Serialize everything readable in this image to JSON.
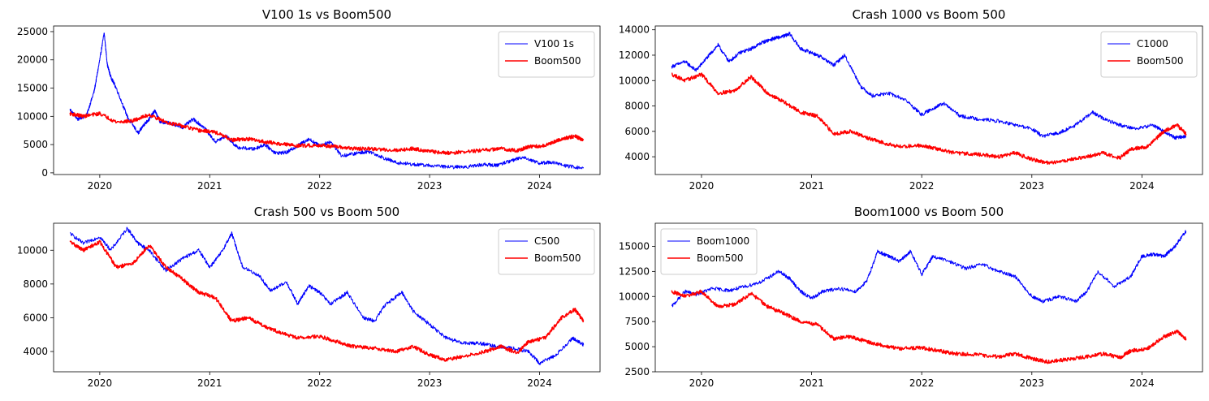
{
  "figure": {
    "background": "#ffffff"
  },
  "chart_data": [
    {
      "type": "line",
      "title": "V100 1s vs Boom500",
      "xlabel": "",
      "ylabel": "",
      "xlim": [
        2019.58,
        2024.55
      ],
      "ylim": [
        -300,
        26000
      ],
      "xticks": [
        2020,
        2021,
        2022,
        2023,
        2024
      ],
      "yticks": [
        0,
        5000,
        10000,
        15000,
        20000,
        25000
      ],
      "grid": false,
      "legend": "top-right",
      "series": [
        {
          "name": "V100 1s",
          "color": "#0000ff",
          "x": [
            2019.73,
            2019.8,
            2019.88,
            2019.95,
            2020.0,
            2020.04,
            2020.07,
            2020.1,
            2020.15,
            2020.25,
            2020.35,
            2020.4,
            2020.45,
            2020.5,
            2020.55,
            2020.65,
            2020.75,
            2020.85,
            2020.95,
            2021.05,
            2021.15,
            2021.25,
            2021.4,
            2021.5,
            2021.6,
            2021.7,
            2021.8,
            2021.9,
            2022.0,
            2022.1,
            2022.2,
            2022.35,
            2022.45,
            2022.6,
            2022.7,
            2022.85,
            2023.0,
            2023.2,
            2023.35,
            2023.5,
            2023.6,
            2023.75,
            2023.85,
            2024.0,
            2024.1,
            2024.25,
            2024.4
          ],
          "y": [
            11200,
            9500,
            10200,
            14500,
            20000,
            24800,
            19000,
            17000,
            15000,
            10000,
            7000,
            8500,
            9500,
            11000,
            9000,
            8800,
            8000,
            9500,
            8000,
            5500,
            6500,
            4500,
            4200,
            5000,
            3500,
            3600,
            4800,
            6000,
            4800,
            5500,
            3000,
            3500,
            3800,
            2500,
            1800,
            1500,
            1300,
            1000,
            1100,
            1500,
            1300,
            2200,
            2800,
            1700,
            1900,
            1200,
            800
          ]
        },
        {
          "name": "Boom500",
          "color": "#ff0000",
          "x": [
            2019.73,
            2019.85,
            2020.0,
            2020.15,
            2020.3,
            2020.45,
            2020.6,
            2020.75,
            2020.9,
            2021.05,
            2021.2,
            2021.35,
            2021.5,
            2021.65,
            2021.8,
            2022.0,
            2022.15,
            2022.3,
            2022.5,
            2022.7,
            2022.85,
            2023.0,
            2023.15,
            2023.3,
            2023.5,
            2023.65,
            2023.8,
            2023.9,
            2024.05,
            2024.2,
            2024.32,
            2024.4
          ],
          "y": [
            10500,
            10000,
            10500,
            9000,
            9200,
            10300,
            9000,
            8300,
            7500,
            7200,
            5800,
            6000,
            5500,
            5100,
            4800,
            4900,
            4600,
            4300,
            4200,
            4000,
            4300,
            3800,
            3500,
            3700,
            4000,
            4300,
            3900,
            4600,
            4800,
            6000,
            6500,
            5800
          ]
        }
      ]
    },
    {
      "type": "line",
      "title": "Crash 1000 vs Boom 500",
      "xlabel": "",
      "ylabel": "",
      "xlim": [
        2019.58,
        2024.55
      ],
      "ylim": [
        2600,
        14300
      ],
      "xticks": [
        2020,
        2021,
        2022,
        2023,
        2024
      ],
      "yticks": [
        4000,
        6000,
        8000,
        10000,
        12000,
        14000
      ],
      "grid": false,
      "legend": "top-right",
      "series": [
        {
          "name": "C1000",
          "color": "#0000ff",
          "x": [
            2019.73,
            2019.85,
            2019.95,
            2020.05,
            2020.15,
            2020.25,
            2020.35,
            2020.45,
            2020.55,
            2020.65,
            2020.75,
            2020.8,
            2020.9,
            2021.0,
            2021.1,
            2021.2,
            2021.3,
            2021.45,
            2021.55,
            2021.7,
            2021.85,
            2022.0,
            2022.1,
            2022.2,
            2022.35,
            2022.5,
            2022.7,
            2022.85,
            2023.0,
            2023.1,
            2023.25,
            2023.4,
            2023.55,
            2023.65,
            2023.8,
            2023.95,
            2024.1,
            2024.2,
            2024.3,
            2024.4
          ],
          "y": [
            11100,
            11500,
            10800,
            11800,
            12800,
            11500,
            12200,
            12500,
            13000,
            13300,
            13500,
            13700,
            12500,
            12200,
            11800,
            11200,
            12000,
            9500,
            8800,
            9000,
            8500,
            7300,
            7800,
            8200,
            7200,
            7000,
            6800,
            6500,
            6200,
            5600,
            5900,
            6500,
            7500,
            7000,
            6500,
            6200,
            6500,
            6000,
            5500,
            5600
          ]
        },
        {
          "name": "Boom500",
          "color": "#ff0000",
          "x": [
            2019.73,
            2019.85,
            2020.0,
            2020.15,
            2020.3,
            2020.45,
            2020.6,
            2020.75,
            2020.9,
            2021.05,
            2021.2,
            2021.35,
            2021.5,
            2021.65,
            2021.8,
            2022.0,
            2022.15,
            2022.3,
            2022.5,
            2022.7,
            2022.85,
            2023.0,
            2023.15,
            2023.3,
            2023.5,
            2023.65,
            2023.8,
            2023.9,
            2024.05,
            2024.2,
            2024.32,
            2024.4
          ],
          "y": [
            10500,
            10000,
            10500,
            9000,
            9200,
            10300,
            9000,
            8300,
            7500,
            7200,
            5800,
            6000,
            5500,
            5100,
            4800,
            4900,
            4600,
            4300,
            4200,
            4000,
            4300,
            3800,
            3500,
            3700,
            4000,
            4300,
            3900,
            4600,
            4800,
            6000,
            6500,
            5800
          ]
        }
      ]
    },
    {
      "type": "line",
      "title": "Crash 500 vs Boom 500",
      "xlabel": "",
      "ylabel": "",
      "xlim": [
        2019.58,
        2024.55
      ],
      "ylim": [
        2800,
        11600
      ],
      "xticks": [
        2020,
        2021,
        2022,
        2023,
        2024
      ],
      "yticks": [
        4000,
        6000,
        8000,
        10000
      ],
      "grid": false,
      "legend": "top-right",
      "series": [
        {
          "name": "C500",
          "color": "#0000ff",
          "x": [
            2019.73,
            2019.85,
            2020.0,
            2020.1,
            2020.25,
            2020.35,
            2020.45,
            2020.6,
            2020.75,
            2020.9,
            2021.0,
            2021.1,
            2021.2,
            2021.3,
            2021.45,
            2021.55,
            2021.7,
            2021.8,
            2021.9,
            2022.0,
            2022.1,
            2022.25,
            2022.4,
            2022.5,
            2022.6,
            2022.75,
            2022.85,
            2023.0,
            2023.15,
            2023.3,
            2023.45,
            2023.6,
            2023.75,
            2023.9,
            2024.0,
            2024.15,
            2024.3,
            2024.4
          ],
          "y": [
            11000,
            10400,
            10800,
            10000,
            11300,
            10400,
            10000,
            8800,
            9500,
            10000,
            9000,
            9800,
            11000,
            9000,
            8500,
            7600,
            8100,
            6800,
            7900,
            7500,
            6800,
            7500,
            6000,
            5800,
            6800,
            7500,
            6400,
            5600,
            4800,
            4500,
            4500,
            4300,
            4200,
            4000,
            3300,
            3800,
            4800,
            4400
          ]
        },
        {
          "name": "Boom500",
          "color": "#ff0000",
          "x": [
            2019.73,
            2019.85,
            2020.0,
            2020.15,
            2020.3,
            2020.45,
            2020.6,
            2020.75,
            2020.9,
            2021.05,
            2021.2,
            2021.35,
            2021.5,
            2021.65,
            2021.8,
            2022.0,
            2022.15,
            2022.3,
            2022.5,
            2022.7,
            2022.85,
            2023.0,
            2023.15,
            2023.3,
            2023.5,
            2023.65,
            2023.8,
            2023.9,
            2024.05,
            2024.2,
            2024.32,
            2024.4
          ],
          "y": [
            10500,
            10000,
            10500,
            9000,
            9200,
            10300,
            9000,
            8300,
            7500,
            7200,
            5800,
            6000,
            5500,
            5100,
            4800,
            4900,
            4600,
            4300,
            4200,
            4000,
            4300,
            3800,
            3500,
            3700,
            4000,
            4300,
            3900,
            4600,
            4800,
            6000,
            6500,
            5800
          ]
        }
      ]
    },
    {
      "type": "line",
      "title": "Boom1000 vs Boom 500",
      "xlabel": "",
      "ylabel": "",
      "xlim": [
        2019.58,
        2024.55
      ],
      "ylim": [
        2500,
        17300
      ],
      "xticks": [
        2020,
        2021,
        2022,
        2023,
        2024
      ],
      "yticks": [
        2500,
        5000,
        7500,
        10000,
        12500,
        15000
      ],
      "grid": false,
      "legend": "top-left",
      "series": [
        {
          "name": "Boom1000",
          "color": "#0000ff",
          "x": [
            2019.73,
            2019.85,
            2019.95,
            2020.1,
            2020.25,
            2020.4,
            2020.55,
            2020.7,
            2020.8,
            2020.9,
            2021.0,
            2021.1,
            2021.25,
            2021.4,
            2021.5,
            2021.6,
            2021.7,
            2021.8,
            2021.9,
            2022.0,
            2022.1,
            2022.25,
            2022.4,
            2022.55,
            2022.7,
            2022.85,
            2023.0,
            2023.1,
            2023.25,
            2023.4,
            2023.5,
            2023.6,
            2023.75,
            2023.9,
            2024.0,
            2024.1,
            2024.2,
            2024.3,
            2024.4
          ],
          "y": [
            9000,
            10500,
            10200,
            10800,
            10600,
            11000,
            11500,
            12500,
            11800,
            10500,
            9800,
            10500,
            10800,
            10500,
            11500,
            14500,
            14000,
            13500,
            14500,
            12200,
            14000,
            13500,
            12800,
            13200,
            12500,
            12000,
            10000,
            9500,
            10000,
            9500,
            10500,
            12500,
            11000,
            12000,
            14000,
            14200,
            14000,
            15000,
            16500
          ]
        },
        {
          "name": "Boom500",
          "color": "#ff0000",
          "x": [
            2019.73,
            2019.85,
            2020.0,
            2020.15,
            2020.3,
            2020.45,
            2020.6,
            2020.75,
            2020.9,
            2021.05,
            2021.2,
            2021.35,
            2021.5,
            2021.65,
            2021.8,
            2022.0,
            2022.15,
            2022.3,
            2022.5,
            2022.7,
            2022.85,
            2023.0,
            2023.15,
            2023.3,
            2023.5,
            2023.65,
            2023.8,
            2023.9,
            2024.05,
            2024.2,
            2024.32,
            2024.4
          ],
          "y": [
            10500,
            10000,
            10500,
            9000,
            9200,
            10300,
            9000,
            8300,
            7500,
            7200,
            5800,
            6000,
            5500,
            5100,
            4800,
            4900,
            4600,
            4300,
            4200,
            4000,
            4300,
            3800,
            3500,
            3700,
            4000,
            4300,
            3900,
            4600,
            4800,
            6000,
            6500,
            5800
          ]
        }
      ]
    }
  ]
}
